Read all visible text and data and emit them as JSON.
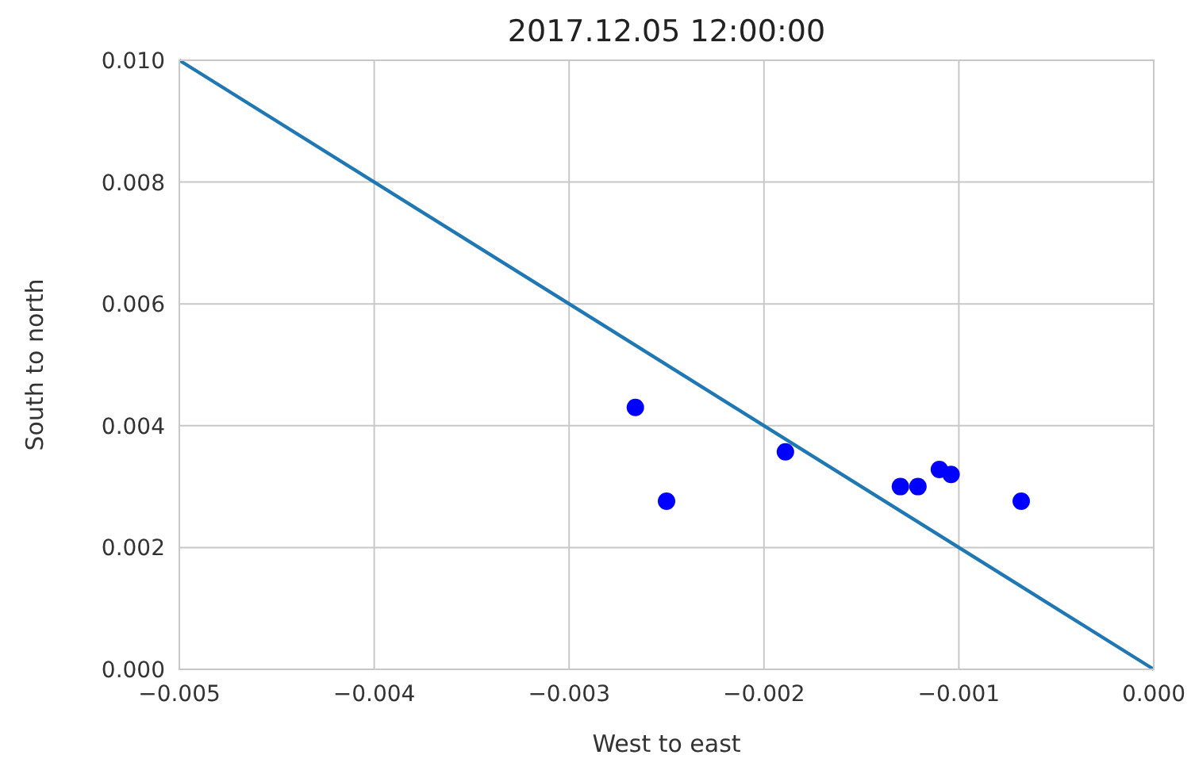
{
  "chart_data": {
    "type": "scatter",
    "title": "2017.12.05 12:00:00",
    "xlabel": "West to east",
    "ylabel": "South to north",
    "series": [
      {
        "color": "#0000ff",
        "marker": "circle",
        "x": [
          -0.00266,
          -0.0025,
          -0.00189,
          -0.0013,
          -0.00121,
          -0.0011,
          -0.00104,
          -0.00068
        ],
        "values": [
          0.0043,
          0.00276,
          0.00357,
          0.003,
          0.003,
          0.00328,
          0.0032,
          0.00276
        ]
      },
      {
        "type": "line",
        "color": "#1f77b4",
        "marker": "none",
        "line_style": "solid",
        "x": [
          -0.005,
          0
        ],
        "values": [
          0.01,
          0
        ]
      }
    ],
    "xlim": [
      -0.005,
      0
    ],
    "ylim": [
      0,
      0.01
    ],
    "xticks": [
      {
        "value": -0.005,
        "label": "−0.005"
      },
      {
        "value": -0.004,
        "label": "−0.004"
      },
      {
        "value": -0.003,
        "label": "−0.003"
      },
      {
        "value": -0.002,
        "label": "−0.002"
      },
      {
        "value": -0.001,
        "label": "−0.001"
      },
      {
        "value": 0,
        "label": "0.000"
      }
    ],
    "yticks": [
      {
        "value": 0,
        "label": "0.000"
      },
      {
        "value": 0.002,
        "label": "0.002"
      },
      {
        "value": 0.004,
        "label": "0.004"
      },
      {
        "value": 0.006,
        "label": "0.006"
      },
      {
        "value": 0.008,
        "label": "0.008"
      },
      {
        "value": 0.01,
        "label": "0.010"
      }
    ],
    "grid": true
  }
}
